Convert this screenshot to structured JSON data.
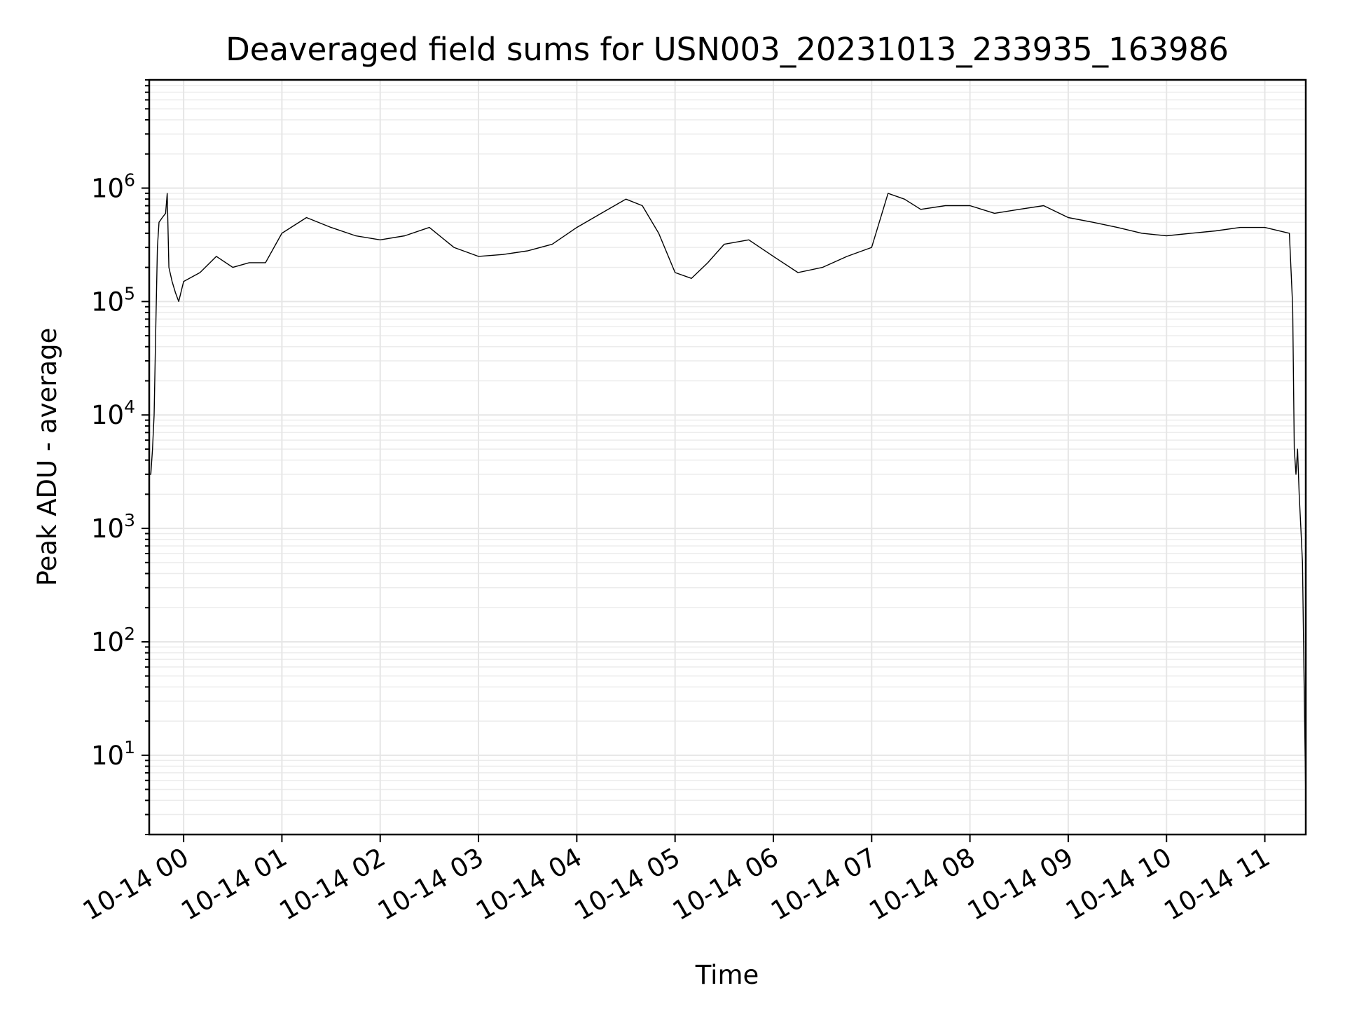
{
  "chart_data": {
    "type": "line",
    "title": "Deaveraged field sums for USN003_20231013_233935_163986",
    "xlabel": "Time",
    "ylabel": "Peak ADU - average",
    "y_scale": "log",
    "ylim": [
      2,
      9000000
    ],
    "xlim": [
      "2023-10-13 23:39",
      "2023-10-14 11:25"
    ],
    "grid": true,
    "x_ticks": [
      {
        "t": "2023-10-14 00:00",
        "label": "10-14 00"
      },
      {
        "t": "2023-10-14 01:00",
        "label": "10-14 01"
      },
      {
        "t": "2023-10-14 02:00",
        "label": "10-14 02"
      },
      {
        "t": "2023-10-14 03:00",
        "label": "10-14 03"
      },
      {
        "t": "2023-10-14 04:00",
        "label": "10-14 04"
      },
      {
        "t": "2023-10-14 05:00",
        "label": "10-14 05"
      },
      {
        "t": "2023-10-14 06:00",
        "label": "10-14 06"
      },
      {
        "t": "2023-10-14 07:00",
        "label": "10-14 07"
      },
      {
        "t": "2023-10-14 08:00",
        "label": "10-14 08"
      },
      {
        "t": "2023-10-14 09:00",
        "label": "10-14 09"
      },
      {
        "t": "2023-10-14 10:00",
        "label": "10-14 10"
      },
      {
        "t": "2023-10-14 11:00",
        "label": "10-14 11"
      }
    ],
    "y_ticks": [
      {
        "value": 10,
        "base": "10",
        "exp": "1"
      },
      {
        "value": 100,
        "base": "10",
        "exp": "2"
      },
      {
        "value": 1000,
        "base": "10",
        "exp": "3"
      },
      {
        "value": 10000,
        "base": "10",
        "exp": "4"
      },
      {
        "value": 100000,
        "base": "10",
        "exp": "5"
      },
      {
        "value": 1000000,
        "base": "10",
        "exp": "6"
      }
    ],
    "series": [
      {
        "color": "#000000",
        "points": [
          [
            "2023-10-13 23:39",
            3000
          ],
          [
            "2023-10-13 23:40",
            3000
          ],
          [
            "2023-10-13 23:41",
            5000
          ],
          [
            "2023-10-13 23:42",
            10000
          ],
          [
            "2023-10-13 23:43",
            60000
          ],
          [
            "2023-10-13 23:44",
            300000
          ],
          [
            "2023-10-13 23:45",
            500000
          ],
          [
            "2023-10-13 23:47",
            550000
          ],
          [
            "2023-10-13 23:49",
            600000
          ],
          [
            "2023-10-13 23:50",
            900000
          ],
          [
            "2023-10-13 23:51",
            200000
          ],
          [
            "2023-10-13 23:53",
            150000
          ],
          [
            "2023-10-13 23:55",
            120000
          ],
          [
            "2023-10-13 23:57",
            100000
          ],
          [
            "2023-10-14 00:00",
            150000
          ],
          [
            "2023-10-14 00:10",
            180000
          ],
          [
            "2023-10-14 00:20",
            250000
          ],
          [
            "2023-10-14 00:30",
            200000
          ],
          [
            "2023-10-14 00:40",
            220000
          ],
          [
            "2023-10-14 00:50",
            220000
          ],
          [
            "2023-10-14 01:00",
            400000
          ],
          [
            "2023-10-14 01:15",
            550000
          ],
          [
            "2023-10-14 01:30",
            450000
          ],
          [
            "2023-10-14 01:45",
            380000
          ],
          [
            "2023-10-14 02:00",
            350000
          ],
          [
            "2023-10-14 02:15",
            380000
          ],
          [
            "2023-10-14 02:30",
            450000
          ],
          [
            "2023-10-14 02:45",
            300000
          ],
          [
            "2023-10-14 03:00",
            250000
          ],
          [
            "2023-10-14 03:15",
            260000
          ],
          [
            "2023-10-14 03:30",
            280000
          ],
          [
            "2023-10-14 03:45",
            320000
          ],
          [
            "2023-10-14 04:00",
            450000
          ],
          [
            "2023-10-14 04:15",
            600000
          ],
          [
            "2023-10-14 04:30",
            800000
          ],
          [
            "2023-10-14 04:40",
            700000
          ],
          [
            "2023-10-14 04:50",
            400000
          ],
          [
            "2023-10-14 05:00",
            180000
          ],
          [
            "2023-10-14 05:10",
            160000
          ],
          [
            "2023-10-14 05:20",
            220000
          ],
          [
            "2023-10-14 05:30",
            320000
          ],
          [
            "2023-10-14 05:45",
            350000
          ],
          [
            "2023-10-14 06:00",
            250000
          ],
          [
            "2023-10-14 06:15",
            180000
          ],
          [
            "2023-10-14 06:30",
            200000
          ],
          [
            "2023-10-14 06:45",
            250000
          ],
          [
            "2023-10-14 07:00",
            300000
          ],
          [
            "2023-10-14 07:10",
            900000
          ],
          [
            "2023-10-14 07:20",
            800000
          ],
          [
            "2023-10-14 07:30",
            650000
          ],
          [
            "2023-10-14 07:45",
            700000
          ],
          [
            "2023-10-14 08:00",
            700000
          ],
          [
            "2023-10-14 08:15",
            600000
          ],
          [
            "2023-10-14 08:30",
            650000
          ],
          [
            "2023-10-14 08:45",
            700000
          ],
          [
            "2023-10-14 09:00",
            550000
          ],
          [
            "2023-10-14 09:15",
            500000
          ],
          [
            "2023-10-14 09:30",
            450000
          ],
          [
            "2023-10-14 09:45",
            400000
          ],
          [
            "2023-10-14 10:00",
            380000
          ],
          [
            "2023-10-14 10:15",
            400000
          ],
          [
            "2023-10-14 10:30",
            420000
          ],
          [
            "2023-10-14 10:45",
            450000
          ],
          [
            "2023-10-14 11:00",
            450000
          ],
          [
            "2023-10-14 11:15",
            400000
          ],
          [
            "2023-10-14 11:17",
            90000
          ],
          [
            "2023-10-14 11:18",
            5000
          ],
          [
            "2023-10-14 11:19",
            3000
          ],
          [
            "2023-10-14 11:20",
            5000
          ],
          [
            "2023-10-14 11:21",
            2000
          ],
          [
            "2023-10-14 11:22",
            1000
          ],
          [
            "2023-10-14 11:23",
            500
          ],
          [
            "2023-10-14 11:24",
            40
          ],
          [
            "2023-10-14 11:25",
            4
          ]
        ]
      }
    ]
  }
}
